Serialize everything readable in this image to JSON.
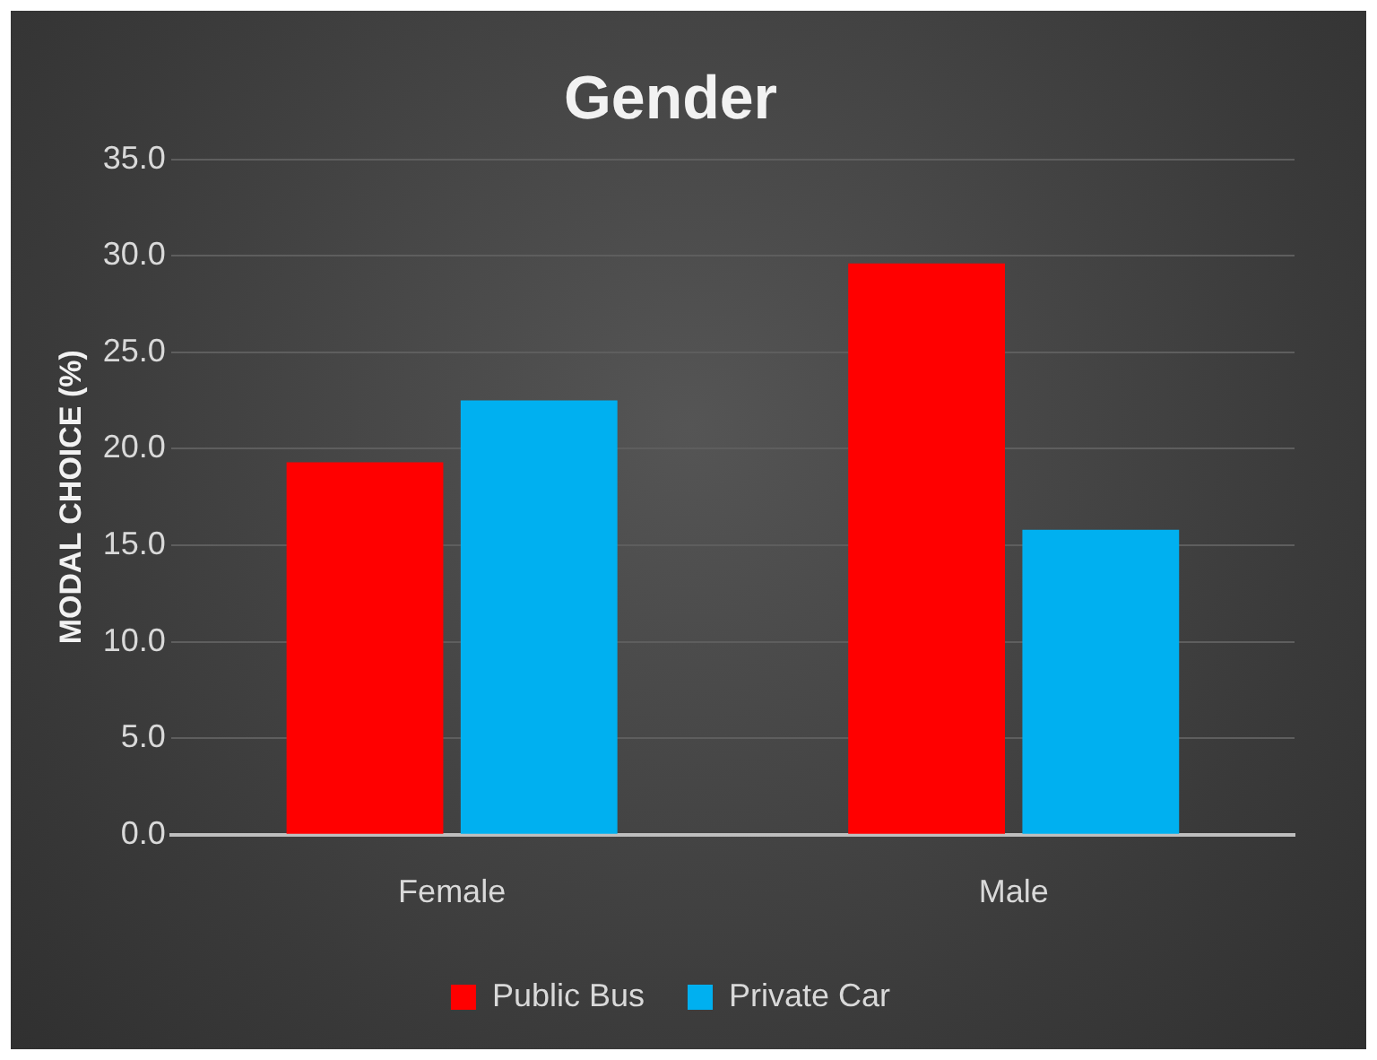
{
  "chart_data": {
    "type": "bar",
    "title": "Gender",
    "ylabel": "MODAL CHOICE (%)",
    "categories": [
      "Female",
      "Male"
    ],
    "series": [
      {
        "name": "Public Bus",
        "color": "#ff0000",
        "values": [
          19.3,
          29.6
        ]
      },
      {
        "name": "Private Car",
        "color": "#00b0f0",
        "values": [
          22.5,
          15.8
        ]
      }
    ],
    "ylim": [
      0,
      35
    ],
    "yticks": [
      {
        "value": 0,
        "label": "0.0"
      },
      {
        "value": 5,
        "label": "5.0"
      },
      {
        "value": 10,
        "label": "10.0"
      },
      {
        "value": 15,
        "label": "15.0"
      },
      {
        "value": 20,
        "label": "20.0"
      },
      {
        "value": 25,
        "label": "25.0"
      },
      {
        "value": 30,
        "label": "30.0"
      },
      {
        "value": 35,
        "label": "35.0"
      }
    ],
    "grid": "y",
    "legend": "bottom"
  }
}
